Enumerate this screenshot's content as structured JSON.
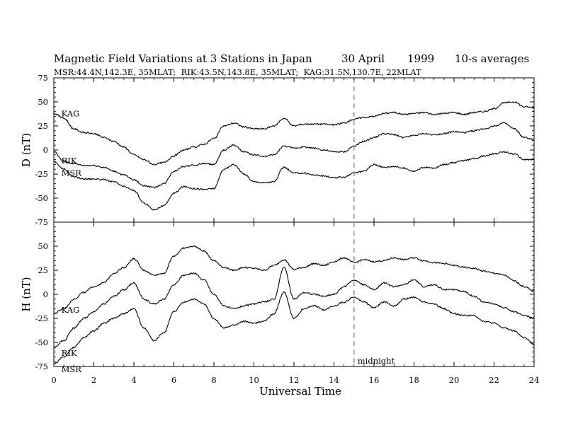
{
  "chart_data": {
    "type": "line",
    "title": "Magnetic Field Variations at 3 Stations in Japan",
    "date": "30 April",
    "year": "1999",
    "averaging": "10-s averages",
    "subtitle": "MSR:44.4N,142.3E, 35MLAT;  RIK:43.5N,143.8E, 35MLAT;  KAG:31.5N,130.7E, 22MLAT",
    "xlabel": "Universal Time",
    "xlim": [
      0,
      24
    ],
    "xticks": [
      "0",
      "2",
      "4",
      "6",
      "8",
      "10",
      "12",
      "14",
      "16",
      "18",
      "20",
      "22",
      "24"
    ],
    "marker": {
      "x": 15,
      "label": "midnight"
    },
    "panels": [
      {
        "id": "D",
        "ylabel": "D (nT)",
        "ylim": [
          -75,
          75
        ],
        "yticks": [
          "75",
          "50",
          "25",
          "0",
          "-25",
          "-50",
          "-75"
        ],
        "x": [
          0,
          0.5,
          1,
          1.5,
          2,
          2.5,
          3,
          3.5,
          4,
          4.5,
          5,
          5.5,
          6,
          6.5,
          7,
          7.5,
          8,
          8.5,
          9,
          9.5,
          10,
          10.5,
          11,
          11.5,
          12,
          12.5,
          13,
          13.5,
          14,
          14.5,
          15,
          15.5,
          16,
          16.5,
          17,
          17.5,
          18,
          18.5,
          19,
          19.5,
          20,
          20.5,
          21,
          21.5,
          22,
          22.5,
          23,
          23.5,
          24
        ],
        "series": [
          {
            "name": "KAG",
            "label_at": [
              0.2,
              38
            ],
            "values": [
              38,
              33,
              22,
              18,
              17,
              13,
              9,
              3,
              -5,
              -10,
              -15,
              -13,
              -6,
              0,
              3,
              6,
              12,
              25,
              28,
              24,
              22,
              22,
              25,
              33,
              25,
              27,
              27,
              27,
              26,
              28,
              32,
              34,
              35,
              38,
              39,
              37,
              38,
              39,
              37,
              38,
              39,
              37,
              39,
              40,
              43,
              49,
              50,
              45,
              44
            ]
          },
          {
            "name": "RIK",
            "label_at": [
              0.2,
              -11
            ],
            "values": [
              -2,
              -12,
              -14,
              -16,
              -16,
              -18,
              -22,
              -26,
              -31,
              -37,
              -39,
              -35,
              -22,
              -17,
              -16,
              -14,
              -15,
              0,
              5,
              -2,
              -5,
              -7,
              -5,
              4,
              2,
              3,
              2,
              0,
              -2,
              -2,
              4,
              9,
              13,
              17,
              16,
              13,
              15,
              17,
              16,
              17,
              19,
              18,
              20,
              22,
              25,
              28,
              22,
              13,
              11
            ]
          },
          {
            "name": "MSR",
            "label_at": [
              0.2,
              -24
            ],
            "values": [
              -12,
              -20,
              -28,
              -30,
              -30,
              -31,
              -33,
              -38,
              -42,
              -55,
              -62,
              -58,
              -45,
              -38,
              -40,
              -41,
              -40,
              -20,
              -15,
              -25,
              -33,
              -34,
              -33,
              -18,
              -24,
              -24,
              -26,
              -27,
              -29,
              -28,
              -24,
              -22,
              -15,
              -18,
              -17,
              -19,
              -22,
              -18,
              -19,
              -15,
              -13,
              -11,
              -9,
              -6,
              -4,
              -2,
              -4,
              -10,
              -10
            ]
          }
        ]
      },
      {
        "id": "H",
        "ylabel": "H (nT)",
        "ylim": [
          -75,
          75
        ],
        "yticks": [
          "75",
          "50",
          "25",
          "0",
          "-25",
          "-50",
          "-75"
        ],
        "x": [
          0,
          0.5,
          1,
          1.5,
          2,
          2.5,
          3,
          3.5,
          4,
          4.5,
          5,
          5.5,
          6,
          6.5,
          7,
          7.5,
          8,
          8.5,
          9,
          9.5,
          10,
          10.5,
          11,
          11.5,
          12,
          12.5,
          13,
          13.5,
          14,
          14.5,
          15,
          15.5,
          16,
          16.5,
          17,
          17.5,
          18,
          18.5,
          19,
          19.5,
          20,
          20.5,
          21,
          21.5,
          22,
          22.5,
          23,
          23.5,
          24
        ],
        "series": [
          {
            "name": "KAG",
            "label_at": [
              0.2,
              -16
            ],
            "values": [
              -20,
              -15,
              -5,
              2,
              8,
              12,
              22,
              28,
              37,
              25,
              20,
              22,
              40,
              48,
              50,
              45,
              35,
              28,
              25,
              28,
              27,
              25,
              30,
              36,
              26,
              28,
              32,
              30,
              34,
              38,
              33,
              36,
              34,
              35,
              38,
              36,
              38,
              35,
              33,
              32,
              30,
              28,
              27,
              24,
              22,
              20,
              14,
              8,
              3
            ]
          },
          {
            "name": "RIK",
            "label_at": [
              0.2,
              -61
            ],
            "values": [
              -55,
              -48,
              -35,
              -25,
              -18,
              -10,
              -2,
              5,
              12,
              -5,
              -10,
              -5,
              10,
              20,
              22,
              15,
              0,
              -12,
              -15,
              -12,
              -10,
              -8,
              -5,
              28,
              -5,
              2,
              0,
              -2,
              0,
              8,
              15,
              10,
              5,
              12,
              8,
              10,
              15,
              8,
              10,
              5,
              5,
              3,
              -2,
              -8,
              -10,
              -14,
              -18,
              -22,
              -25
            ]
          },
          {
            "name": "MSR",
            "label_at": [
              0.2,
              -78
            ],
            "values": [
              -72,
              -65,
              -55,
              -45,
              -38,
              -30,
              -25,
              -20,
              -15,
              -35,
              -48,
              -40,
              -18,
              -8,
              -5,
              -10,
              -25,
              -35,
              -32,
              -28,
              -30,
              -28,
              -20,
              2,
              -25,
              -15,
              -12,
              -16,
              -12,
              -8,
              -3,
              -8,
              -14,
              -8,
              -12,
              -5,
              -3,
              -8,
              -10,
              -15,
              -20,
              -22,
              -22,
              -28,
              -30,
              -35,
              -38,
              -45,
              -52
            ]
          }
        ]
      }
    ]
  }
}
